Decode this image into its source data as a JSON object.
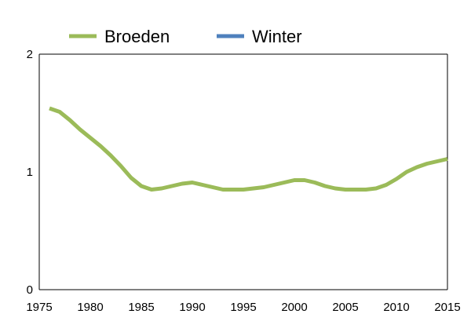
{
  "chart_data": {
    "type": "line",
    "title": "",
    "xlabel": "",
    "ylabel": "",
    "xlim": [
      1975,
      2015
    ],
    "ylim": [
      0,
      2
    ],
    "x_ticks": [
      "1975",
      "1980",
      "1985",
      "1990",
      "1995",
      "2000",
      "2005",
      "2010",
      "2015"
    ],
    "y_ticks": [
      "0",
      "1",
      "2"
    ],
    "grid": false,
    "legend_position": "top",
    "series": [
      {
        "name": "Broeden",
        "color": "#9bbb59",
        "x": [
          1976,
          1977,
          1978,
          1979,
          1980,
          1981,
          1982,
          1983,
          1984,
          1985,
          1986,
          1987,
          1988,
          1989,
          1990,
          1991,
          1992,
          1993,
          1994,
          1995,
          1996,
          1997,
          1998,
          1999,
          2000,
          2001,
          2002,
          2003,
          2004,
          2005,
          2006,
          2007,
          2008,
          2009,
          2010,
          2011,
          2012,
          2013,
          2014,
          2015
        ],
        "values": [
          1.54,
          1.51,
          1.44,
          1.36,
          1.29,
          1.22,
          1.14,
          1.05,
          0.95,
          0.88,
          0.85,
          0.86,
          0.88,
          0.9,
          0.91,
          0.89,
          0.87,
          0.85,
          0.85,
          0.85,
          0.86,
          0.87,
          0.89,
          0.91,
          0.93,
          0.93,
          0.91,
          0.88,
          0.86,
          0.85,
          0.85,
          0.85,
          0.86,
          0.89,
          0.94,
          1.0,
          1.04,
          1.07,
          1.09,
          1.11
        ]
      },
      {
        "name": "Winter",
        "color": "#4f81bd",
        "x": [],
        "values": []
      }
    ]
  }
}
